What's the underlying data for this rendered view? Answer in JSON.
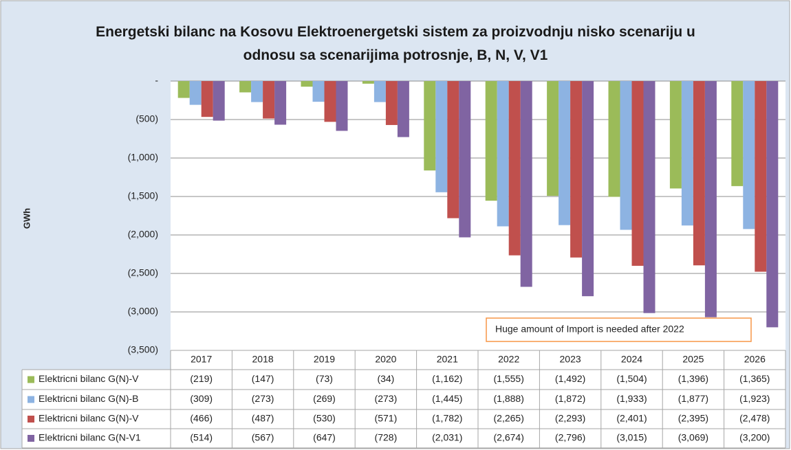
{
  "chart_data": {
    "type": "bar",
    "title": "Energetski bilanc na Kosovu Elektroenergetski sistem za proizvodnju nisko scenariju u odnosu sa scenarijima potrosnje, B, N, V, V1",
    "y_label": "GWh",
    "categories": [
      "2017",
      "2018",
      "2019",
      "2020",
      "2021",
      "2022",
      "2023",
      "2024",
      "2025",
      "2026"
    ],
    "series": [
      {
        "name": "Elektricni bilanc G(N)-V",
        "color": "#9bbb59",
        "values": [
          -219,
          -147,
          -73,
          -34,
          -1162,
          -1555,
          -1492,
          -1504,
          -1396,
          -1365
        ],
        "value_labels": [
          "(219)",
          "(147)",
          "(73)",
          "(34)",
          "(1,162)",
          "(1,555)",
          "(1,492)",
          "(1,504)",
          "(1,396)",
          "(1,365)"
        ]
      },
      {
        "name": "Elektricni bilanc G(N)-B",
        "color": "#8db3e2",
        "values": [
          -309,
          -273,
          -269,
          -273,
          -1445,
          -1888,
          -1872,
          -1933,
          -1877,
          -1923
        ],
        "value_labels": [
          "(309)",
          "(273)",
          "(269)",
          "(273)",
          "(1,445)",
          "(1,888)",
          "(1,872)",
          "(1,933)",
          "(1,877)",
          "(1,923)"
        ]
      },
      {
        "name": "Elektricni bilanc G(N)-V",
        "color": "#c0504d",
        "values": [
          -466,
          -487,
          -530,
          -571,
          -1782,
          -2265,
          -2293,
          -2401,
          -2395,
          -2478
        ],
        "value_labels": [
          "(466)",
          "(487)",
          "(530)",
          "(571)",
          "(1,782)",
          "(2,265)",
          "(2,293)",
          "(2,401)",
          "(2,395)",
          "(2,478)"
        ]
      },
      {
        "name": "Elektricni bilanc G(N-V1",
        "color": "#8064a2",
        "values": [
          -514,
          -567,
          -647,
          -728,
          -2031,
          -2674,
          -2796,
          -3015,
          -3069,
          -3200
        ],
        "value_labels": [
          "(514)",
          "(567)",
          "(647)",
          "(728)",
          "(2,031)",
          "(2,674)",
          "(2,796)",
          "(3,015)",
          "(3,069)",
          "(3,200)"
        ]
      }
    ],
    "ylim": [
      -3500,
      0
    ],
    "yticks": [
      {
        "value": 0,
        "label": "-"
      },
      {
        "value": -500,
        "label": "(500)"
      },
      {
        "value": -1000,
        "label": "(1,000)"
      },
      {
        "value": -1500,
        "label": "(1,500)"
      },
      {
        "value": -2000,
        "label": "(2,000)"
      },
      {
        "value": -2500,
        "label": "(2,500)"
      },
      {
        "value": -3000,
        "label": "(3,000)"
      },
      {
        "value": -3500,
        "label": "(3,500)"
      }
    ],
    "grid": true,
    "annotation": "Huge amount of Import is needed  after 2022"
  }
}
